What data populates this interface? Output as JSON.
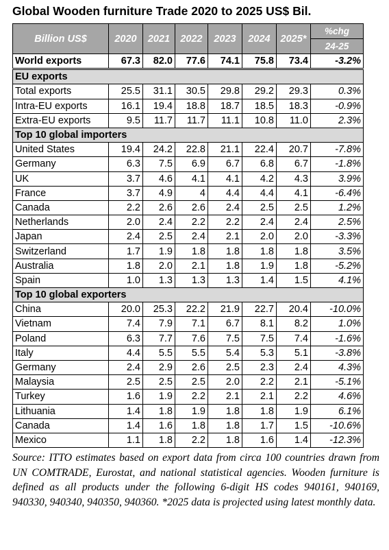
{
  "header": {
    "title": "Global Wooden furniture Trade 2020 to 2025 US$ Bil."
  },
  "table": {
    "unit_label": "Billion US$",
    "columns": [
      "2020",
      "2021",
      "2022",
      "2023",
      "2024",
      "2025*"
    ],
    "chg_header": [
      "%chg",
      "24-25"
    ],
    "rows": [
      {
        "label": "World exports",
        "values": [
          "67.3",
          "82.0",
          "77.6",
          "74.1",
          "75.8",
          "73.4"
        ],
        "chg": "-3.2%"
      },
      {
        "section": "EU exports"
      },
      {
        "label": "Total exports",
        "values": [
          "25.5",
          "31.1",
          "30.5",
          "29.8",
          "29.2",
          "29.3"
        ],
        "chg": "0.3%"
      },
      {
        "label": "Intra-EU exports",
        "values": [
          "16.1",
          "19.4",
          "18.8",
          "18.7",
          "18.5",
          "18.3"
        ],
        "chg": "-0.9%"
      },
      {
        "label": "Extra-EU exports",
        "values": [
          "9.5",
          "11.7",
          "11.7",
          "11.1",
          "10.8",
          "11.0"
        ],
        "chg": "2.3%"
      },
      {
        "section": "Top 10 global importers"
      },
      {
        "label": "United States",
        "values": [
          "19.4",
          "24.2",
          "22.8",
          "21.1",
          "22.4",
          "20.7"
        ],
        "chg": "-7.8%"
      },
      {
        "label": "Germany",
        "values": [
          "6.3",
          "7.5",
          "6.9",
          "6.7",
          "6.8",
          "6.7"
        ],
        "chg": "-1.8%"
      },
      {
        "label": "UK",
        "values": [
          "3.7",
          "4.6",
          "4.1",
          "4.1",
          "4.2",
          "4.3"
        ],
        "chg": "3.9%"
      },
      {
        "label": "France",
        "values": [
          "3.7",
          "4.9",
          "4",
          "4.4",
          "4.4",
          "4.1"
        ],
        "chg": "-6.4%"
      },
      {
        "label": "Canada",
        "values": [
          "2.2",
          "2.6",
          "2.6",
          "2.4",
          "2.5",
          "2.5"
        ],
        "chg": "1.2%"
      },
      {
        "label": "Netherlands",
        "values": [
          "2.0",
          "2.4",
          "2.2",
          "2.2",
          "2.4",
          "2.4"
        ],
        "chg": "2.5%"
      },
      {
        "label": "Japan",
        "values": [
          "2.4",
          "2.5",
          "2.4",
          "2.1",
          "2.0",
          "2.0"
        ],
        "chg": "-3.3%"
      },
      {
        "label": "Switzerland",
        "values": [
          "1.7",
          "1.9",
          "1.8",
          "1.8",
          "1.8",
          "1.8"
        ],
        "chg": "3.5%"
      },
      {
        "label": "Australia",
        "values": [
          "1.8",
          "2.0",
          "2.1",
          "1.8",
          "1.9",
          "1.8"
        ],
        "chg": "-5.2%"
      },
      {
        "label": "Spain",
        "values": [
          "1.0",
          "1.3",
          "1.3",
          "1.3",
          "1.4",
          "1.5"
        ],
        "chg": "4.1%"
      },
      {
        "section": "Top 10 global exporters"
      },
      {
        "label": "China",
        "values": [
          "20.0",
          "25.3",
          "22.2",
          "21.9",
          "22.7",
          "20.4"
        ],
        "chg": "-10.0%"
      },
      {
        "label": "Vietnam",
        "values": [
          "7.4",
          "7.9",
          "7.1",
          "6.7",
          "8.1",
          "8.2"
        ],
        "chg": "1.0%"
      },
      {
        "label": "Poland",
        "values": [
          "6.3",
          "7.7",
          "7.6",
          "7.5",
          "7.5",
          "7.4"
        ],
        "chg": "-1.6%"
      },
      {
        "label": "Italy",
        "values": [
          "4.4",
          "5.5",
          "5.5",
          "5.4",
          "5.3",
          "5.1"
        ],
        "chg": "-3.8%"
      },
      {
        "label": "Germany",
        "values": [
          "2.4",
          "2.9",
          "2.6",
          "2.5",
          "2.3",
          "2.4"
        ],
        "chg": "4.3%"
      },
      {
        "label": "Malaysia",
        "values": [
          "2.5",
          "2.5",
          "2.5",
          "2.0",
          "2.2",
          "2.1"
        ],
        "chg": "-5.1%"
      },
      {
        "label": "Turkey",
        "values": [
          "1.6",
          "1.9",
          "2.2",
          "2.1",
          "2.1",
          "2.2"
        ],
        "chg": "4.6%"
      },
      {
        "label": "Lithuania",
        "values": [
          "1.4",
          "1.8",
          "1.9",
          "1.8",
          "1.8",
          "1.9"
        ],
        "chg": "6.1%"
      },
      {
        "label": "Canada",
        "values": [
          "1.4",
          "1.6",
          "1.8",
          "1.8",
          "1.7",
          "1.5"
        ],
        "chg": "-10.6%"
      },
      {
        "label": "Mexico",
        "values": [
          "1.1",
          "1.8",
          "2.2",
          "1.8",
          "1.6",
          "1.4"
        ],
        "chg": "-12.3%"
      }
    ]
  },
  "footer": {
    "source": "Source: ITTO estimates based on export data from circa 100 countries drawn from UN COMTRADE, Eurostat, and national statistical agencies. Wooden furniture is defined as all products under the following 6-digit HS codes 940161, 940169, 940330, 940340, 940350, 940360. *2025 data is projected using latest monthly data."
  }
}
